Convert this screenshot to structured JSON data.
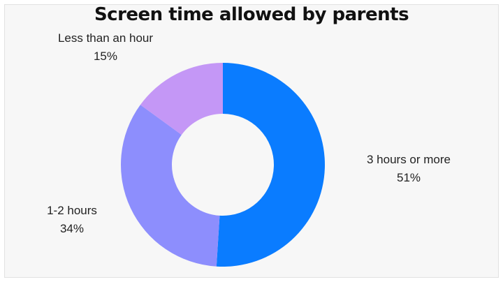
{
  "chart_data": {
    "type": "pie",
    "variant": "donut",
    "title": "Screen time allowed by parents",
    "categories": [
      "3 hours or more",
      "1-2 hours",
      "Less than an hour"
    ],
    "values": [
      51,
      34,
      15
    ],
    "value_labels": [
      "51%",
      "34%",
      "15%"
    ],
    "colors": [
      "#0a7cff",
      "#8d8efd",
      "#c497f6"
    ],
    "legend": "none"
  }
}
